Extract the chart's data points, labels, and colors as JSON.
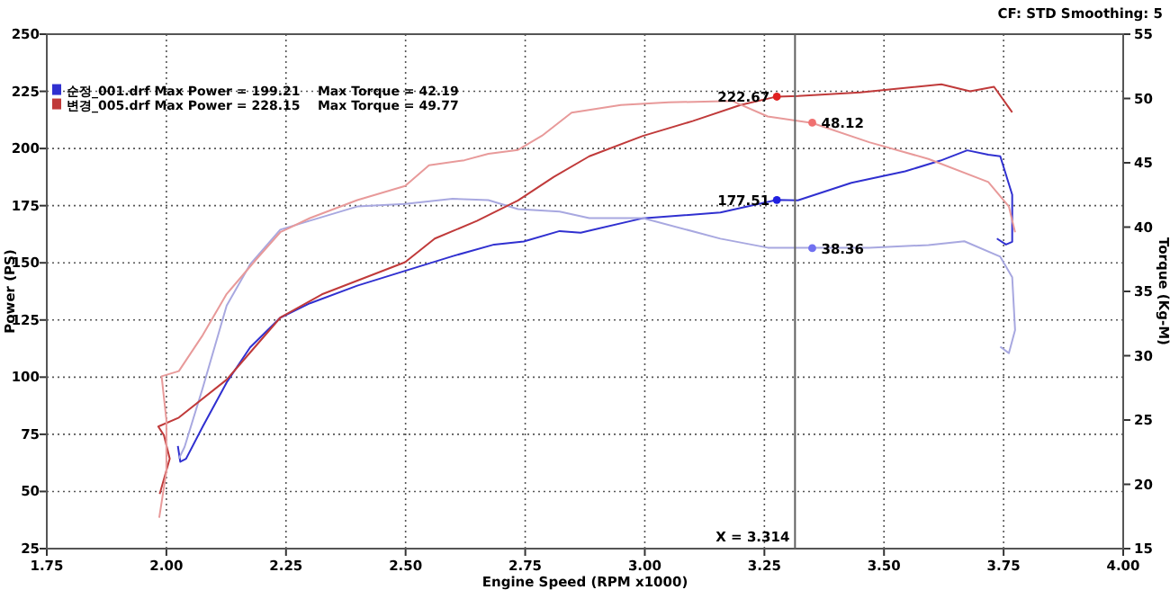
{
  "chart_data": {
    "type": "line",
    "xlabel": "Engine Speed (RPM x1000)",
    "ylabel": "Power (PS)",
    "y2label": "Torque (Kg-M)",
    "xlim": [
      1.75,
      4.0
    ],
    "xticks": [
      {
        "value": 1.75,
        "label": "1.75"
      },
      {
        "value": 2.0,
        "label": "2.00"
      },
      {
        "value": 2.25,
        "label": "2.25"
      },
      {
        "value": 2.5,
        "label": "2.50"
      },
      {
        "value": 2.75,
        "label": "2.75"
      },
      {
        "value": 3.0,
        "label": "3.00"
      },
      {
        "value": 3.25,
        "label": "3.25"
      },
      {
        "value": 3.5,
        "label": "3.50"
      },
      {
        "value": 3.75,
        "label": "3.75"
      },
      {
        "value": 4.0,
        "label": "4.00"
      }
    ],
    "ylim": [
      25,
      250
    ],
    "yticks": [
      25,
      50,
      75,
      100,
      125,
      150,
      175,
      200,
      225,
      250
    ],
    "y2lim": [
      15,
      55
    ],
    "y2ticks": [
      15,
      20,
      25,
      30,
      35,
      40,
      45,
      50,
      55
    ],
    "grid": true,
    "legend": "top left",
    "line_style": "solid",
    "series": [
      {
        "name": "순정_001.drf Max Power = 199.21    Max Torque = 42.19",
        "color": "#3030d0",
        "x": [
          2.024,
          2.029,
          2.041,
          2.076,
          2.126,
          2.175,
          2.238,
          2.3,
          2.399,
          2.499,
          2.598,
          2.685,
          2.747,
          2.822,
          2.866,
          2.996,
          3.158,
          3.276,
          3.32,
          3.432,
          3.544,
          3.618,
          3.674,
          3.718,
          3.743,
          3.768,
          3.768,
          3.755,
          3.736
        ],
        "values": [
          69.9,
          63.0,
          64.3,
          78.4,
          97.7,
          113,
          126,
          132.3,
          140,
          146.5,
          152.9,
          158,
          159.3,
          163.9,
          163.2,
          169.5,
          172,
          177.5,
          177.3,
          185,
          190,
          194.7,
          199.2,
          197.3,
          196.6,
          179.8,
          159.2,
          158,
          160.6
        ]
      },
      {
        "color": "#a8a8e0",
        "axis": "y2",
        "x": [
          2.026,
          2.038,
          2.076,
          2.126,
          2.175,
          2.238,
          2.3,
          2.399,
          2.499,
          2.598,
          2.673,
          2.735,
          2.822,
          2.884,
          2.996,
          3.158,
          3.257,
          3.35,
          3.469,
          3.593,
          3.668,
          3.743,
          3.768,
          3.774,
          3.761,
          3.743
        ],
        "values": [
          22.0,
          22.9,
          27.5,
          33.9,
          37.1,
          39.8,
          40.5,
          41.6,
          41.8,
          42.2,
          42.1,
          41.4,
          41.2,
          40.7,
          40.7,
          39.1,
          38.4,
          38.4,
          38.4,
          38.6,
          38.9,
          37.7,
          36.1,
          32.0,
          30.2,
          30.7
        ]
      },
      {
        "name": "변경_005.drf Max Power = 228.15    Max Torque = 49.77",
        "color": "#c03a3a",
        "x": [
          1.986,
          2.007,
          1.995,
          1.983,
          2.026,
          2.126,
          2.238,
          2.325,
          2.499,
          2.561,
          2.649,
          2.735,
          2.81,
          2.884,
          2.996,
          3.1,
          3.2,
          3.276,
          3.32,
          3.45,
          3.62,
          3.68,
          3.73,
          3.768
        ],
        "values": [
          48.9,
          64.3,
          74.5,
          78.4,
          82.3,
          98.9,
          126,
          136.2,
          150.3,
          160.6,
          168.3,
          177.3,
          187.6,
          196.6,
          205.5,
          212,
          219,
          222.7,
          223,
          224.5,
          228.1,
          225,
          227,
          215.8
        ]
      },
      {
        "color": "#e89a9a",
        "axis": "y2",
        "x": [
          1.985,
          2.0,
          2.0,
          1.99,
          2.026,
          2.076,
          2.126,
          2.188,
          2.238,
          2.3,
          2.399,
          2.499,
          2.549,
          2.623,
          2.673,
          2.735,
          2.785,
          2.847,
          2.95,
          3.05,
          3.183,
          3.257,
          3.35,
          3.469,
          3.593,
          3.718,
          3.761,
          3.774
        ],
        "values": [
          17.4,
          21,
          25,
          28.4,
          28.8,
          31.6,
          34.8,
          37.5,
          39.6,
          40.7,
          42.1,
          43.2,
          44.8,
          45.2,
          45.7,
          46.0,
          47.1,
          48.9,
          49.5,
          49.7,
          49.8,
          48.6,
          48.1,
          46.6,
          45.3,
          43.5,
          41.6,
          39.6
        ]
      },
      {
        "type": "scatter",
        "marker": "circle",
        "colors": [
          "#e02020",
          "#2020e0"
        ],
        "x": [
          3.276,
          3.276
        ],
        "values": [
          222.67,
          177.51
        ],
        "value_labels": [
          "222.67",
          "177.51"
        ]
      },
      {
        "type": "scatter",
        "marker": "circle",
        "axis": "y2",
        "colors": [
          "#f07070",
          "#7070f0"
        ],
        "x": [
          3.35,
          3.35
        ],
        "values": [
          48.12,
          38.36
        ],
        "value_labels": [
          "48.12",
          "38.36"
        ]
      }
    ],
    "ref_lines": [
      {
        "axis": "x",
        "value": 3.314,
        "label": "X = 3.314",
        "color": "#606060"
      }
    ],
    "annotations": [
      "CF: STD  Smoothing: 5"
    ]
  }
}
